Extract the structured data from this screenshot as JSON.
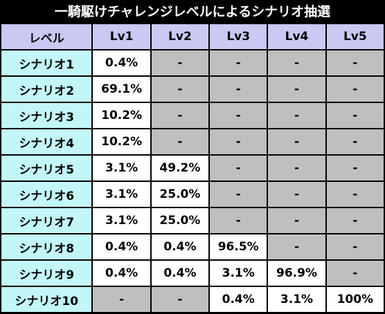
{
  "title": "一騎駆けチャレンジレベルによるシナリオ抽選",
  "colors": {
    "background": "#000000",
    "header_bg": "#c9c9f4",
    "row_label_bg": "#c3f7f7",
    "value_bg": "#ffffff",
    "empty_bg": "#bfbfbf"
  },
  "table": {
    "corner": "レベル",
    "levels": [
      "Lv1",
      "Lv2",
      "Lv3",
      "Lv4",
      "Lv5"
    ],
    "rows": [
      {
        "label": "シナリオ1",
        "values": [
          "0.4%",
          "-",
          "-",
          "-",
          "-"
        ]
      },
      {
        "label": "シナリオ2",
        "values": [
          "69.1%",
          "-",
          "-",
          "-",
          "-"
        ]
      },
      {
        "label": "シナリオ3",
        "values": [
          "10.2%",
          "-",
          "-",
          "-",
          "-"
        ]
      },
      {
        "label": "シナリオ4",
        "values": [
          "10.2%",
          "-",
          "-",
          "-",
          "-"
        ]
      },
      {
        "label": "シナリオ5",
        "values": [
          "3.1%",
          "49.2%",
          "-",
          "-",
          "-"
        ]
      },
      {
        "label": "シナリオ6",
        "values": [
          "3.1%",
          "25.0%",
          "-",
          "-",
          "-"
        ]
      },
      {
        "label": "シナリオ7",
        "values": [
          "3.1%",
          "25.0%",
          "-",
          "-",
          "-"
        ]
      },
      {
        "label": "シナリオ8",
        "values": [
          "0.4%",
          "0.4%",
          "96.5%",
          "-",
          "-"
        ]
      },
      {
        "label": "シナリオ9",
        "values": [
          "0.4%",
          "0.4%",
          "3.1%",
          "96.9%",
          "-"
        ]
      },
      {
        "label": "シナリオ10",
        "values": [
          "-",
          "-",
          "0.4%",
          "3.1%",
          "100%"
        ]
      }
    ]
  }
}
